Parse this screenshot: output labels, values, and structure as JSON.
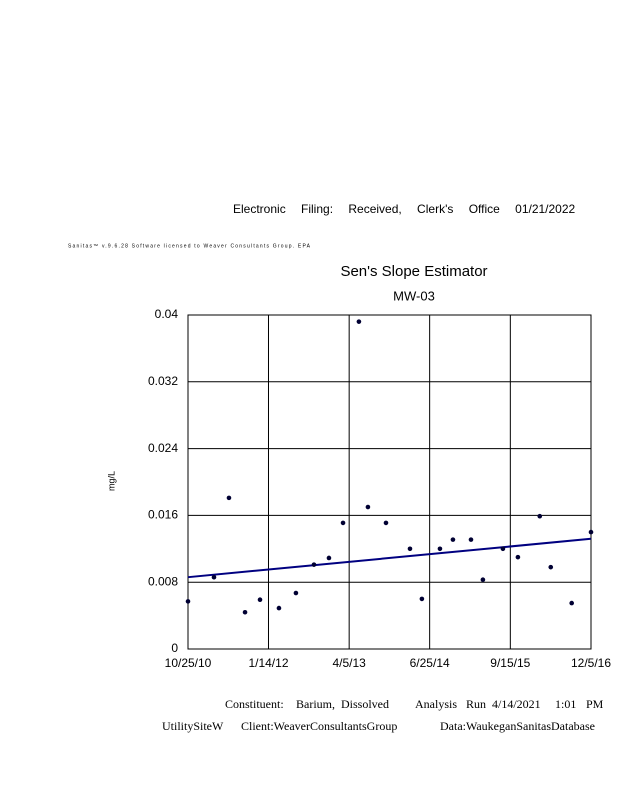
{
  "header": "Electronic Filing: Received, Clerk's Office 01/21/2022",
  "license": "Sanitas™ v.9.6.28 Software licensed to Weaver Consultants Group. EPA",
  "chart_data": {
    "type": "scatter",
    "title": "Sen's Slope Estimator",
    "subtitle": "MW-03",
    "y_label": "mg/L",
    "x": [
      "2010-10-25",
      "2011-03-18",
      "2011-06-09",
      "2011-09-06",
      "2011-11-28",
      "2012-03-12",
      "2012-06-14",
      "2012-09-22",
      "2012-12-14",
      "2013-03-02",
      "2013-05-29",
      "2013-07-18",
      "2013-10-26",
      "2014-03-08",
      "2014-05-13",
      "2014-08-21",
      "2014-11-01",
      "2015-02-09",
      "2015-04-16",
      "2015-08-05",
      "2015-10-27",
      "2016-02-25",
      "2016-04-26",
      "2016-08-20",
      "2016-12-05"
    ],
    "values": [
      0.0057,
      0.0086,
      0.0181,
      0.0044,
      0.0059,
      0.0049,
      0.0067,
      0.0101,
      0.0109,
      0.0151,
      0.0392,
      0.017,
      0.0151,
      0.012,
      0.006,
      0.012,
      0.0131,
      0.0131,
      0.0083,
      0.012,
      0.011,
      0.0159,
      0.0098,
      0.0055,
      0.014
    ],
    "color": "#000033",
    "trend": {
      "x": [
        "2010-10-25",
        "2016-12-05"
      ],
      "values": [
        0.0086,
        0.0132
      ],
      "color": "#000080"
    },
    "xlim": [
      "2010-10-25",
      "2016-12-05"
    ],
    "xticks": [
      {
        "value": "2010-10-25",
        "label": "10/25/10"
      },
      {
        "value": "2012-01-14",
        "label": "1/14/12"
      },
      {
        "value": "2013-04-05",
        "label": "4/5/13"
      },
      {
        "value": "2014-06-25",
        "label": "6/25/14"
      },
      {
        "value": "2015-09-15",
        "label": "9/15/15"
      },
      {
        "value": "2016-12-05",
        "label": "12/5/16"
      }
    ],
    "ylim": [
      0,
      0.04
    ],
    "yticks": [
      0,
      0.008,
      0.016,
      0.024,
      0.032,
      0.04
    ],
    "grid": true
  },
  "footer": {
    "line1": [
      "Constituent:",
      "Barium,",
      "Dissolved",
      "Analysis",
      "Run",
      "4/14/2021",
      "1:01",
      "PM"
    ],
    "line2": [
      "UtilitySiteW",
      "Client:WeaverConsultantsGroup",
      "Data:WaukeganSanitasDatabase"
    ]
  }
}
